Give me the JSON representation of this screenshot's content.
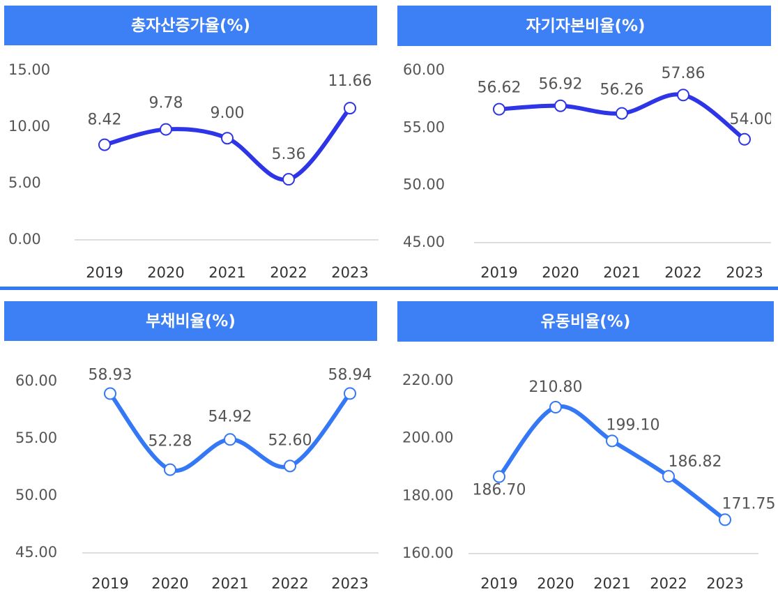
{
  "chart_data": [
    {
      "type": "line",
      "title": "총자산증가율(%)",
      "categories": [
        "2019",
        "2020",
        "2021",
        "2022",
        "2023"
      ],
      "values": [
        8.42,
        9.78,
        9.0,
        5.36,
        11.66
      ],
      "value_labels": [
        "8.42",
        "9.78",
        "9.00",
        "5.36",
        "11.66"
      ],
      "color": "#2d35e6",
      "ylim": [
        0,
        15
      ],
      "yticks": [
        {
          "value": 0,
          "label": "0.00"
        },
        {
          "value": 5,
          "label": "5.00"
        },
        {
          "value": 10,
          "label": "10.00"
        },
        {
          "value": 15,
          "label": "15.00"
        }
      ],
      "grid": false
    },
    {
      "type": "line",
      "title": "자기자본비율(%)",
      "categories": [
        "2019",
        "2020",
        "2021",
        "2022",
        "2023"
      ],
      "values": [
        56.62,
        56.92,
        56.26,
        57.86,
        54.0
      ],
      "value_labels": [
        "56.62",
        "56.92",
        "56.26",
        "57.86",
        "54.00"
      ],
      "color": "#2d35e6",
      "ylim": [
        45,
        60
      ],
      "yticks": [
        {
          "value": 45,
          "label": "45.00"
        },
        {
          "value": 50,
          "label": "50.00"
        },
        {
          "value": 55,
          "label": "55.00"
        },
        {
          "value": 60,
          "label": "60.00"
        }
      ],
      "grid": false
    },
    {
      "type": "line",
      "title": "부채비율(%)",
      "categories": [
        "2019",
        "2020",
        "2021",
        "2022",
        "2023"
      ],
      "values": [
        58.93,
        52.28,
        54.92,
        52.6,
        58.94
      ],
      "value_labels": [
        "58.93",
        "52.28",
        "54.92",
        "52.60",
        "58.94"
      ],
      "color": "#3478f6",
      "ylim": [
        45,
        60
      ],
      "yticks": [
        {
          "value": 45,
          "label": "45.00"
        },
        {
          "value": 50,
          "label": "50.00"
        },
        {
          "value": 55,
          "label": "55.00"
        },
        {
          "value": 60,
          "label": "60.00"
        }
      ],
      "grid": false
    },
    {
      "type": "line",
      "title": "유동비율(%)",
      "categories": [
        "2019",
        "2020",
        "2021",
        "2022",
        "2023"
      ],
      "values": [
        186.7,
        210.8,
        199.1,
        186.82,
        171.75
      ],
      "value_labels": [
        "186.70",
        "210.80",
        "199.10",
        "186.82",
        "171.75"
      ],
      "color": "#3478f6",
      "ylim": [
        160,
        220
      ],
      "yticks": [
        {
          "value": 160,
          "label": "160.00"
        },
        {
          "value": 180,
          "label": "180.00"
        },
        {
          "value": 200,
          "label": "200.00"
        },
        {
          "value": 220,
          "label": "220.00"
        }
      ],
      "grid": false
    }
  ]
}
